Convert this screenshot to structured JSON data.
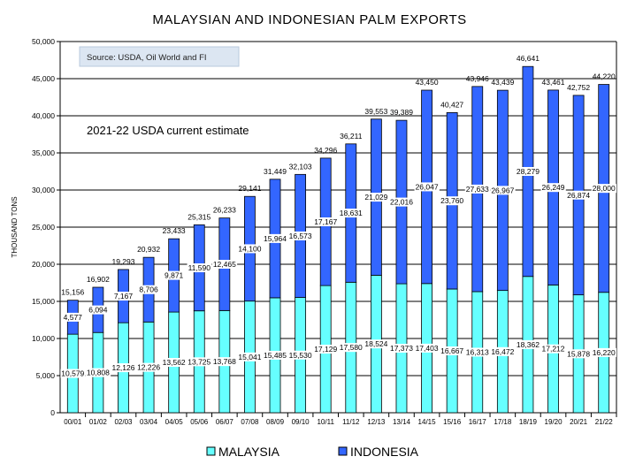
{
  "chart_data": {
    "type": "bar",
    "stacked": true,
    "title": "MALAYSIAN AND INDONESIAN PALM EXPORTS",
    "source_note": "Source: USDA, Oil World and FI",
    "annotation": "2021-22 USDA current estimate",
    "ylabel": "THOUSAND TONS",
    "xlabel": "",
    "ylim": [
      0,
      50000
    ],
    "yticks": [
      0,
      5000,
      10000,
      15000,
      20000,
      25000,
      30000,
      35000,
      40000,
      45000,
      50000
    ],
    "ytick_labels": [
      "0",
      "5,000",
      "10,000",
      "15,000",
      "20,000",
      "25,000",
      "30,000",
      "35,000",
      "40,000",
      "45,000",
      "50,000"
    ],
    "grid": true,
    "legend_position": "bottom",
    "categories": [
      "00/01",
      "01/02",
      "02/03",
      "03/04",
      "04/05",
      "05/06",
      "06/07",
      "07/08",
      "08/09",
      "09/10",
      "10/11",
      "11/12",
      "12/13",
      "13/14",
      "14/15",
      "15/16",
      "16/17",
      "17/18",
      "18/19",
      "19/20",
      "20/21",
      "21/22"
    ],
    "series": [
      {
        "name": "MALAYSIA",
        "color": "#66ffff",
        "values": [
          10579,
          10808,
          12126,
          12226,
          13562,
          13725,
          13768,
          15041,
          15485,
          15530,
          17129,
          17580,
          18524,
          17373,
          17403,
          16667,
          16313,
          16472,
          18362,
          17212,
          15878,
          16220
        ]
      },
      {
        "name": "INDONESIA",
        "color": "#3366ff",
        "values": [
          4577,
          6094,
          7167,
          8706,
          9871,
          11590,
          12465,
          14100,
          15964,
          16573,
          17167,
          18631,
          21029,
          22016,
          26047,
          23760,
          27633,
          26967,
          28279,
          26249,
          26874,
          28000
        ]
      }
    ],
    "totals": [
      15156,
      16902,
      19293,
      20932,
      23433,
      25315,
      26233,
      29141,
      31449,
      32103,
      34296,
      36211,
      39553,
      39389,
      43450,
      40427,
      43946,
      43439,
      46641,
      43461,
      42752,
      44220
    ]
  }
}
